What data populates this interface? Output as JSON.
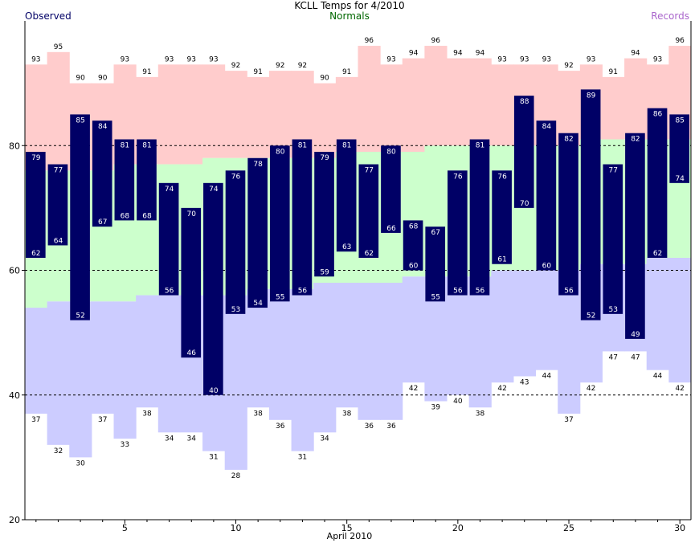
{
  "header": {
    "title": "KCLL Temps for 4/2010",
    "legend_observed": "Observed",
    "legend_normals": "Normals",
    "legend_records": "Records"
  },
  "xaxis": {
    "label": "April 2010"
  },
  "colors": {
    "observed": "#000066",
    "observed_text": "#ffffff",
    "normal": "#ccffcc",
    "record_high": "#ffcccc",
    "record_low": "#ccccff",
    "grid": "#000000",
    "legend_observed": "#000066",
    "legend_normals": "#006600",
    "legend_records": "#aa66cc"
  },
  "chart_data": {
    "type": "bar",
    "title": "KCLL Temps for 4/2010",
    "xlabel": "April 2010",
    "ylabel": "",
    "ylim": [
      20,
      100
    ],
    "xlim": [
      0.5,
      30.5
    ],
    "yticks": [
      20,
      40,
      60,
      80
    ],
    "xticks": [
      5,
      10,
      15,
      20,
      25,
      30
    ],
    "grid": "dashed horizontal at 40, 60, 80",
    "legend": "top row: Observed left, Normals center, Records right",
    "days": [
      1,
      2,
      3,
      4,
      5,
      6,
      7,
      8,
      9,
      10,
      11,
      12,
      13,
      14,
      15,
      16,
      17,
      18,
      19,
      20,
      21,
      22,
      23,
      24,
      25,
      26,
      27,
      28,
      29,
      30
    ],
    "series": [
      {
        "name": "Observed",
        "role": "observed_high",
        "values": [
          79,
          77,
          85,
          84,
          81,
          81,
          74,
          70,
          74,
          76,
          78,
          80,
          81,
          79,
          81,
          77,
          80,
          68,
          67,
          76,
          81,
          76,
          88,
          84,
          82,
          89,
          77,
          82,
          86,
          85
        ]
      },
      {
        "name": "Observed",
        "role": "observed_low",
        "values": [
          62,
          64,
          52,
          67,
          68,
          68,
          56,
          46,
          40,
          53,
          54,
          55,
          56,
          59,
          63,
          62,
          66,
          60,
          55,
          56,
          56,
          61,
          70,
          60,
          56,
          52,
          53,
          49,
          62,
          74
        ]
      },
      {
        "name": "Normals",
        "role": "normal_high",
        "values": [
          76,
          76,
          76,
          76,
          77,
          77,
          77,
          77,
          78,
          78,
          78,
          78,
          78,
          78,
          79,
          79,
          79,
          79,
          80,
          80,
          80,
          80,
          80,
          80,
          80,
          81,
          81,
          81,
          81,
          81
        ]
      },
      {
        "name": "Normals",
        "role": "normal_low",
        "values": [
          54,
          55,
          55,
          55,
          55,
          56,
          56,
          56,
          56,
          56,
          57,
          57,
          57,
          58,
          58,
          58,
          58,
          59,
          59,
          59,
          59,
          60,
          60,
          60,
          60,
          61,
          61,
          61,
          62,
          62
        ]
      },
      {
        "name": "Records",
        "role": "record_high",
        "values": [
          93,
          95,
          90,
          90,
          93,
          91,
          93,
          93,
          93,
          92,
          91,
          92,
          92,
          90,
          91,
          96,
          93,
          94,
          96,
          94,
          94,
          93,
          93,
          93,
          92,
          93,
          91,
          94,
          93,
          96
        ]
      },
      {
        "name": "Records",
        "role": "record_low",
        "values": [
          37,
          32,
          30,
          37,
          33,
          38,
          34,
          34,
          31,
          28,
          38,
          36,
          31,
          34,
          38,
          36,
          36,
          42,
          39,
          40,
          38,
          42,
          43,
          44,
          37,
          42,
          47,
          47,
          44,
          42
        ]
      }
    ]
  }
}
